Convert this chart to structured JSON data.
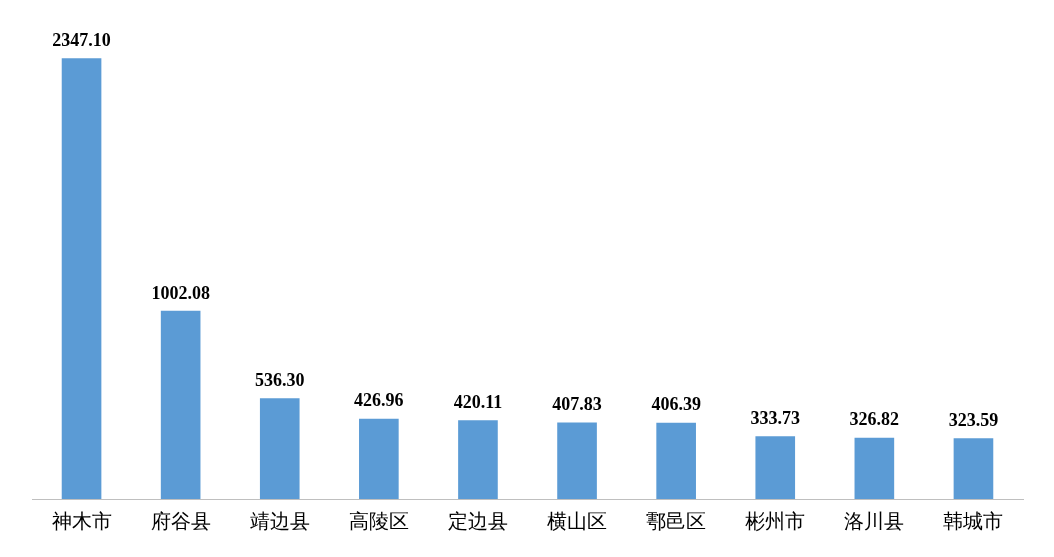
{
  "chart_data": {
    "type": "bar",
    "categories": [
      "神木市",
      "府谷县",
      "靖边县",
      "高陵区",
      "定边县",
      "横山区",
      "鄠邑区",
      "彬州市",
      "洛川县",
      "韩城市"
    ],
    "values": [
      2347.1,
      1002.08,
      536.3,
      426.96,
      420.11,
      407.83,
      406.39,
      333.73,
      326.82,
      323.59
    ],
    "value_labels": [
      "2347.10",
      "1002.08",
      "536.30",
      "426.96",
      "420.11",
      "407.83",
      "406.39",
      "333.73",
      "326.82",
      "323.59"
    ],
    "color": "#5b9bd5",
    "grid": false,
    "legend": false
  }
}
